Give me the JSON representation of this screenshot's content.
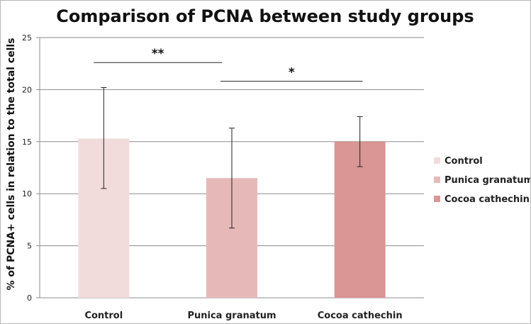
{
  "chart_data": {
    "type": "bar",
    "title": "Comparison of PCNA between study groups",
    "xlabel": "",
    "ylabel": "% of PCNA+ cells in relation to the total cells",
    "ylim": [
      0,
      25
    ],
    "yticks": [
      0,
      5,
      10,
      15,
      20,
      25
    ],
    "grid": true,
    "legend_position": "right",
    "categories": [
      "Control",
      "Punica granatum",
      "Cocoa cathechin"
    ],
    "values": [
      15.3,
      11.5,
      15.0
    ],
    "error_low": [
      10.5,
      6.7,
      12.6
    ],
    "error_high": [
      20.2,
      16.3,
      17.4
    ],
    "colors": [
      "#f2dcdb",
      "#e6b9b8",
      "#d99694"
    ],
    "legend": [
      "Control",
      "Punica granatum",
      "Cocoa cathechin"
    ],
    "significance": [
      {
        "label": "**",
        "from": 0,
        "to": 1,
        "y": 22.6
      },
      {
        "label": "*",
        "from": 1,
        "to": 2,
        "y": 20.8
      }
    ]
  }
}
